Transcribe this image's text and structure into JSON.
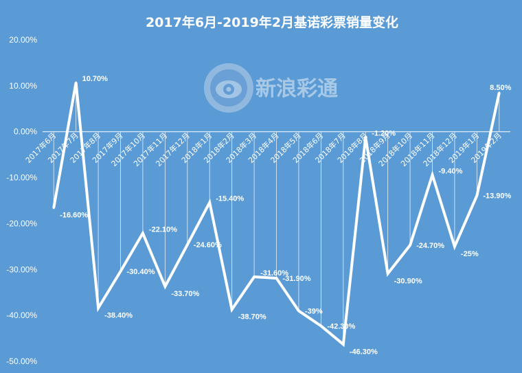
{
  "chart_data": {
    "type": "line",
    "title": "2017年6月-2019年2月基诺彩票销量变化",
    "categories": [
      "2017年6月",
      "2017年7月",
      "2017年8月",
      "2017年9月",
      "2017年10月",
      "2017年11月",
      "2017年12月",
      "2018年1月",
      "2018年2月",
      "2018年3月",
      "2018年4月",
      "2018年5月",
      "2018年6月",
      "2018年7月",
      "2018年8月",
      "2018年9月",
      "2018年10月",
      "2018年11月",
      "2018年12月",
      "2019年1月",
      "2019年2月"
    ],
    "values": [
      -16.6,
      10.7,
      -38.4,
      -30.4,
      -22.1,
      -33.7,
      -24.6,
      -15.4,
      -38.7,
      -31.6,
      -31.9,
      -39,
      -42.3,
      -46.3,
      -1.2,
      -30.9,
      -24.7,
      -9.4,
      -25,
      -13.9,
      8.5
    ],
    "data_labels": [
      "-16.60%",
      "10.70%",
      "-38.40%",
      "-30.40%",
      "-22.10%",
      "-33.70%",
      "-24.60%",
      "-15.40%",
      "-38.70%",
      "-31.60%",
      "-31.90%",
      "-39%",
      "-42.30%",
      "-46.30%",
      "-1.20%",
      "-30.90%",
      "-24.70%",
      "-9.40%",
      "-25%",
      "-13.90%",
      "8.50%"
    ],
    "y_ticks": [
      "20.00%",
      "10.00%",
      "0.00%",
      "-10.00%",
      "-20.00%",
      "-30.00%",
      "-40.00%",
      "-50.00%"
    ],
    "ylim": [
      -50,
      20
    ],
    "grid": true,
    "xlabel": "",
    "ylabel": "",
    "line_color": "#ffffff",
    "background": "#5b9bd5"
  },
  "watermark": {
    "text": "新浪彩通",
    "icon": "sina-eye-logo-icon"
  }
}
